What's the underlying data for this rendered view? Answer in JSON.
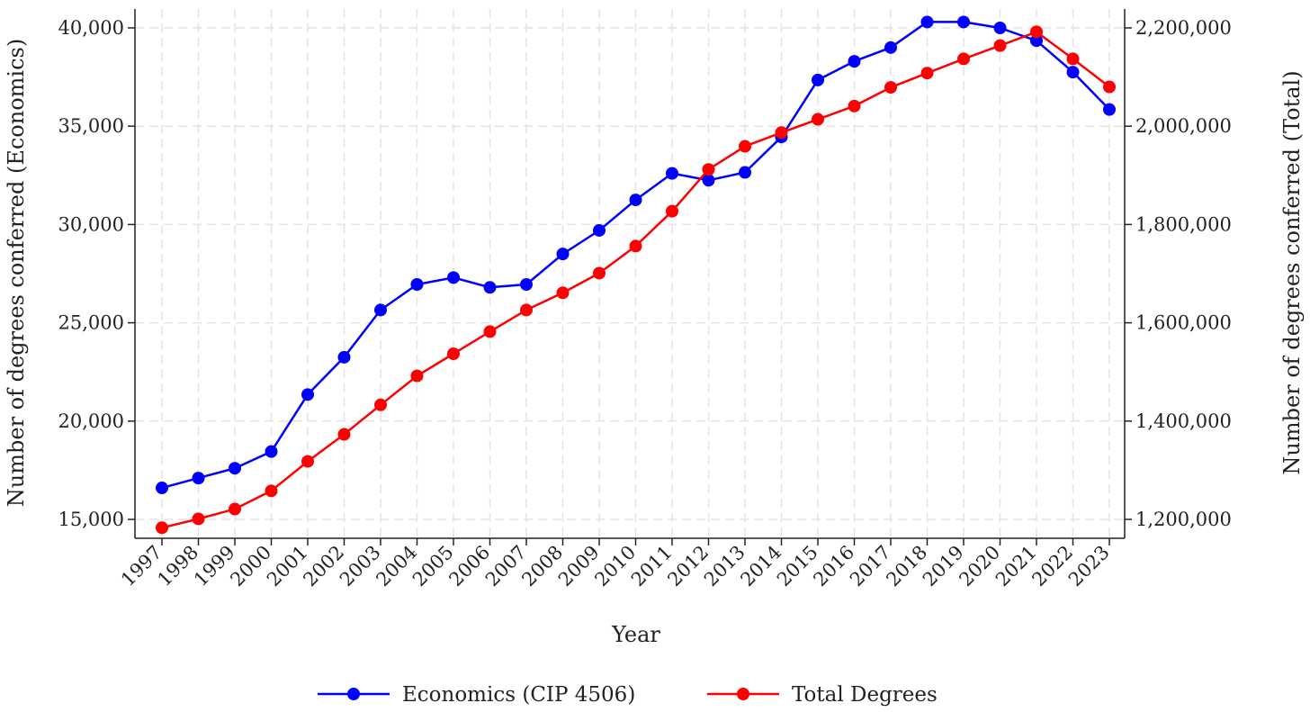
{
  "chart_data": {
    "type": "line",
    "title": "",
    "xlabel": "Year",
    "ylabel_left": "Number of degrees conferred (Economics)",
    "ylabel_right": "Number of degrees conferred (Total)",
    "x": [
      "1997",
      "1998",
      "1999",
      "2000",
      "2001",
      "2002",
      "2003",
      "2004",
      "2005",
      "2006",
      "2007",
      "2008",
      "2009",
      "2010",
      "2011",
      "2012",
      "2013",
      "2014",
      "2015",
      "2016",
      "2017",
      "2018",
      "2019",
      "2020",
      "2021",
      "2022",
      "2023"
    ],
    "ylim_left": [
      15000,
      40000
    ],
    "ylim_right": [
      1200000,
      2200000
    ],
    "yticks_left": [
      {
        "value": 15000,
        "label": "15,000"
      },
      {
        "value": 20000,
        "label": "20,000"
      },
      {
        "value": 25000,
        "label": "25,000"
      },
      {
        "value": 30000,
        "label": "30,000"
      },
      {
        "value": 35000,
        "label": "35,000"
      },
      {
        "value": 40000,
        "label": "40,000"
      }
    ],
    "yticks_right": [
      {
        "value": 1200000,
        "label": "1,200,000"
      },
      {
        "value": 1400000,
        "label": "1,400,000"
      },
      {
        "value": 1600000,
        "label": "1,600,000"
      },
      {
        "value": 1800000,
        "label": "1,800,000"
      },
      {
        "value": 2000000,
        "label": "2,000,000"
      },
      {
        "value": 2200000,
        "label": "2,200,000"
      }
    ],
    "grid": true,
    "legend_position": "bottom",
    "series": [
      {
        "name": "Economics (CIP 4506)",
        "axis": "left",
        "color": "#0000ff",
        "values": [
          16600,
          17100,
          17600,
          18450,
          21350,
          23250,
          25650,
          26950,
          27300,
          26800,
          26950,
          28500,
          29700,
          31250,
          32600,
          32250,
          32650,
          34450,
          37350,
          38300,
          39000,
          40300,
          40300,
          40000,
          39350,
          37750,
          35850
        ]
      },
      {
        "name": "Total Degrees",
        "axis": "right",
        "color": "#ff0000",
        "values": [
          1183000,
          1201000,
          1221000,
          1258000,
          1318000,
          1373000,
          1433000,
          1492000,
          1537000,
          1582000,
          1626000,
          1661000,
          1701000,
          1756000,
          1827000,
          1912000,
          1959000,
          1987000,
          2014000,
          2041000,
          2079000,
          2108000,
          2137000,
          2164000,
          2192000,
          2137000,
          2080000
        ]
      }
    ]
  }
}
